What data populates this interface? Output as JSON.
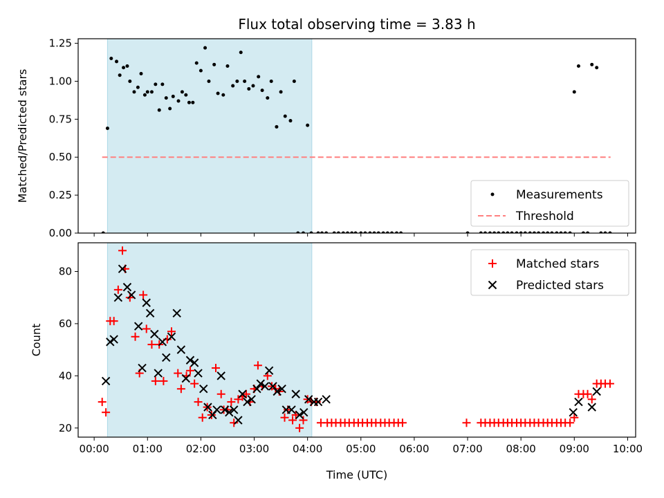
{
  "chart_data": {
    "title": "Flux total observing time = 3.83 h",
    "xlabel": "Time (UTC)",
    "x_unit": "hours",
    "xlim": [
      -0.3,
      10.15
    ],
    "xticks": [
      0,
      1,
      2,
      3,
      4,
      5,
      6,
      7,
      8,
      9,
      10
    ],
    "xtick_labels": [
      "00:00",
      "01:00",
      "02:00",
      "03:00",
      "04:00",
      "05:00",
      "06:00",
      "07:00",
      "08:00",
      "09:00",
      "10:00"
    ],
    "shaded_interval": {
      "start": 0.25,
      "end": 4.08,
      "color": "#add8e6"
    },
    "panels": [
      {
        "type": "scatter",
        "ylabel": "Matched/Predicted stars",
        "ylim": [
          0,
          1.28
        ],
        "yticks": [
          0,
          0.25,
          0.5,
          0.75,
          1.0,
          1.25
        ],
        "ytick_labels": [
          "0.00",
          "0.25",
          "0.50",
          "0.75",
          "1.00",
          "1.25"
        ],
        "legend_placement": "lower-right",
        "series": [
          {
            "name": "Measurements",
            "kind": "points",
            "color": "#000000",
            "x": [
              0.17,
              0.25,
              0.32,
              0.42,
              0.48,
              0.55,
              0.62,
              0.67,
              0.75,
              0.82,
              0.88,
              0.95,
              1.0,
              1.08,
              1.15,
              1.22,
              1.28,
              1.35,
              1.42,
              1.48,
              1.58,
              1.65,
              1.72,
              1.78,
              1.85,
              1.92,
              2.0,
              2.08,
              2.15,
              2.25,
              2.32,
              2.42,
              2.5,
              2.6,
              2.68,
              2.75,
              2.82,
              2.9,
              2.98,
              3.08,
              3.15,
              3.25,
              3.32,
              3.42,
              3.5,
              3.58,
              3.68,
              3.75,
              3.82,
              3.92,
              4.0,
              4.07,
              4.2,
              4.27,
              4.35,
              4.5,
              4.58,
              4.67,
              4.75,
              4.83,
              4.9,
              5.0,
              5.08,
              5.17,
              5.25,
              5.33,
              5.42,
              5.5,
              5.58,
              5.67,
              5.75,
              7.0,
              7.25,
              7.33,
              7.42,
              7.5,
              7.58,
              7.67,
              7.75,
              7.83,
              7.92,
              8.0,
              8.08,
              8.17,
              8.25,
              8.33,
              8.42,
              8.5,
              8.58,
              8.67,
              8.75,
              8.83,
              8.92,
              9.0,
              9.08,
              9.17,
              9.25,
              9.33,
              9.42,
              9.5,
              9.58,
              9.67
            ],
            "y": [
              0,
              0.69,
              1.15,
              1.13,
              1.04,
              1.09,
              1.1,
              1.0,
              0.93,
              0.96,
              1.05,
              0.91,
              0.93,
              0.93,
              0.98,
              0.81,
              0.98,
              0.89,
              0.82,
              0.9,
              0.87,
              0.93,
              0.91,
              0.86,
              0.86,
              1.12,
              1.07,
              1.22,
              1.0,
              1.11,
              0.92,
              0.91,
              1.1,
              0.97,
              1.0,
              1.19,
              1.0,
              0.95,
              0.97,
              1.03,
              0.94,
              0.89,
              1.0,
              0.7,
              0.93,
              0.77,
              0.74,
              1.0,
              0,
              0,
              0.71,
              0,
              0,
              0,
              0,
              0,
              0,
              0,
              0,
              0,
              0,
              0,
              0,
              0,
              0,
              0,
              0,
              0,
              0,
              0,
              0,
              0,
              0,
              0,
              0,
              0,
              0,
              0,
              0,
              0,
              0,
              0,
              0,
              0,
              0,
              0,
              0,
              0,
              0,
              0,
              0,
              0,
              0,
              0.93,
              1.1,
              0,
              0,
              1.11,
              1.09,
              0,
              0,
              0
            ],
            "x_override_note": ""
          },
          {
            "name": "Threshold",
            "kind": "dashed-line",
            "color": "#ff7f7f",
            "x": [
              0.15,
              9.68
            ],
            "y": [
              0.5,
              0.5
            ]
          }
        ]
      },
      {
        "type": "scatter",
        "ylabel": "Count",
        "ylim": [
          16.5,
          91
        ],
        "yticks": [
          20,
          40,
          60,
          80
        ],
        "ytick_labels": [
          "20",
          "40",
          "60",
          "80"
        ],
        "legend_placement": "upper-right",
        "series": [
          {
            "name": "Matched stars",
            "kind": "plus",
            "color": "#ff0000",
            "x": [
              0.15,
              0.22,
              0.3,
              0.37,
              0.45,
              0.53,
              0.58,
              0.67,
              0.77,
              0.85,
              0.92,
              0.98,
              1.08,
              1.15,
              1.22,
              1.3,
              1.37,
              1.45,
              1.57,
              1.63,
              1.73,
              1.8,
              1.88,
              1.95,
              2.03,
              2.12,
              2.2,
              2.28,
              2.38,
              2.43,
              2.5,
              2.57,
              2.62,
              2.7,
              2.78,
              2.85,
              2.92,
              3.0,
              3.07,
              3.15,
              3.25,
              3.33,
              3.4,
              3.47,
              3.57,
              3.63,
              3.72,
              3.78,
              3.85,
              3.92,
              4.0,
              4.07,
              4.17,
              4.25,
              4.37,
              4.45,
              4.53,
              4.62,
              4.7,
              4.78,
              4.87,
              4.95,
              5.03,
              5.12,
              5.2,
              5.28,
              5.37,
              5.45,
              5.53,
              5.62,
              5.7,
              5.78,
              6.98,
              7.25,
              7.33,
              7.42,
              7.5,
              7.58,
              7.67,
              7.75,
              7.83,
              7.92,
              8.0,
              8.08,
              8.17,
              8.25,
              8.33,
              8.42,
              8.5,
              8.58,
              8.67,
              8.75,
              8.83,
              8.92,
              9.0,
              9.08,
              9.17,
              9.25,
              9.33,
              9.42,
              9.5,
              9.58,
              9.67
            ],
            "y": [
              30,
              26,
              61,
              61,
              73,
              88,
              81,
              70,
              55,
              41,
              71,
              58,
              52,
              38,
              52,
              38,
              54,
              57,
              41,
              35,
              40,
              42,
              37,
              30,
              24,
              28,
              25,
              43,
              33,
              27,
              27,
              30,
              22,
              31,
              32,
              33,
              30,
              35,
              44,
              36,
              40,
              36,
              35,
              34,
              24,
              27,
              23,
              25,
              20,
              23,
              31,
              30,
              30,
              22,
              22,
              22,
              22,
              22,
              22,
              22,
              22,
              22,
              22,
              22,
              22,
              22,
              22,
              22,
              22,
              22,
              22,
              22,
              22,
              22,
              22,
              22,
              22,
              22,
              22,
              22,
              22,
              22,
              22,
              22,
              22,
              22,
              22,
              22,
              22,
              22,
              22,
              22,
              22,
              22,
              24,
              33,
              33,
              33,
              31,
              37,
              37,
              37,
              37
            ],
            "x_extra_note": ""
          },
          {
            "name": "Predicted stars",
            "kind": "cross",
            "color": "#000000",
            "x": [
              0.22,
              0.3,
              0.37,
              0.45,
              0.53,
              0.62,
              0.7,
              0.83,
              0.9,
              0.98,
              1.05,
              1.13,
              1.2,
              1.28,
              1.35,
              1.45,
              1.55,
              1.63,
              1.72,
              1.8,
              1.88,
              1.95,
              2.05,
              2.13,
              2.22,
              2.3,
              2.38,
              2.45,
              2.53,
              2.62,
              2.7,
              2.78,
              2.87,
              2.95,
              3.05,
              3.12,
              3.2,
              3.28,
              3.35,
              3.43,
              3.52,
              3.6,
              3.7,
              3.78,
              3.85,
              3.93,
              4.02,
              4.12,
              4.2,
              4.35,
              8.98,
              9.08,
              9.33,
              9.42
            ],
            "y": [
              38,
              53,
              54,
              70,
              81,
              74,
              71,
              59,
              43,
              68,
              64,
              56,
              41,
              53,
              47,
              55,
              64,
              50,
              39,
              46,
              45,
              41,
              35,
              28,
              25,
              27,
              40,
              27,
              26,
              27,
              23,
              33,
              30,
              31,
              35,
              37,
              36,
              42,
              36,
              34,
              35,
              27,
              27,
              33,
              25,
              26,
              31,
              30,
              30,
              31,
              26,
              30,
              28,
              34
            ]
          }
        ]
      }
    ]
  }
}
